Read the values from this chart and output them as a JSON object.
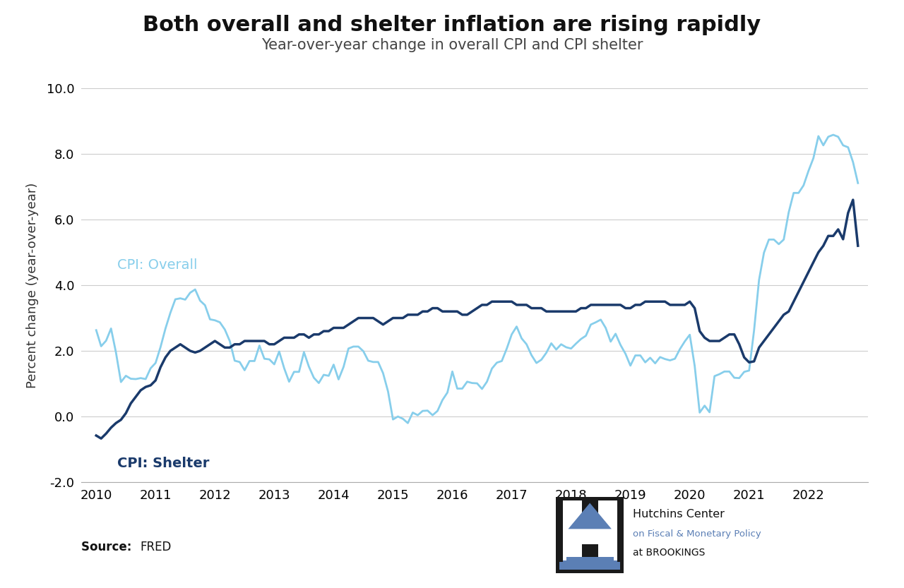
{
  "title": "Both overall and shelter inflation are rising rapidly",
  "subtitle": "Year-over-year change in overall CPI and CPI shelter",
  "ylabel": "Percent change (year-over-year)",
  "source": "FRED",
  "ylim": [
    -2.0,
    10.0
  ],
  "yticks": [
    -2.0,
    0.0,
    2.0,
    4.0,
    6.0,
    8.0,
    10.0
  ],
  "xticks": [
    2010,
    2011,
    2012,
    2013,
    2014,
    2015,
    2016,
    2017,
    2018,
    2019,
    2020,
    2021,
    2022
  ],
  "color_overall": "#87CEEB",
  "color_shelter": "#1a3a6b",
  "label_overall": "CPI: Overall",
  "label_shelter": "CPI: Shelter",
  "overall_x": [
    2010.0,
    2010.083,
    2010.167,
    2010.25,
    2010.333,
    2010.417,
    2010.5,
    2010.583,
    2010.667,
    2010.75,
    2010.833,
    2010.917,
    2011.0,
    2011.083,
    2011.167,
    2011.25,
    2011.333,
    2011.417,
    2011.5,
    2011.583,
    2011.667,
    2011.75,
    2011.833,
    2011.917,
    2012.0,
    2012.083,
    2012.167,
    2012.25,
    2012.333,
    2012.417,
    2012.5,
    2012.583,
    2012.667,
    2012.75,
    2012.833,
    2012.917,
    2013.0,
    2013.083,
    2013.167,
    2013.25,
    2013.333,
    2013.417,
    2013.5,
    2013.583,
    2013.667,
    2013.75,
    2013.833,
    2013.917,
    2014.0,
    2014.083,
    2014.167,
    2014.25,
    2014.333,
    2014.417,
    2014.5,
    2014.583,
    2014.667,
    2014.75,
    2014.833,
    2014.917,
    2015.0,
    2015.083,
    2015.167,
    2015.25,
    2015.333,
    2015.417,
    2015.5,
    2015.583,
    2015.667,
    2015.75,
    2015.833,
    2015.917,
    2016.0,
    2016.083,
    2016.167,
    2016.25,
    2016.333,
    2016.417,
    2016.5,
    2016.583,
    2016.667,
    2016.75,
    2016.833,
    2016.917,
    2017.0,
    2017.083,
    2017.167,
    2017.25,
    2017.333,
    2017.417,
    2017.5,
    2017.583,
    2017.667,
    2017.75,
    2017.833,
    2017.917,
    2018.0,
    2018.083,
    2018.167,
    2018.25,
    2018.333,
    2018.417,
    2018.5,
    2018.583,
    2018.667,
    2018.75,
    2018.833,
    2018.917,
    2019.0,
    2019.083,
    2019.167,
    2019.25,
    2019.333,
    2019.417,
    2019.5,
    2019.583,
    2019.667,
    2019.75,
    2019.833,
    2019.917,
    2020.0,
    2020.083,
    2020.167,
    2020.25,
    2020.333,
    2020.417,
    2020.5,
    2020.583,
    2020.667,
    2020.75,
    2020.833,
    2020.917,
    2021.0,
    2021.083,
    2021.167,
    2021.25,
    2021.333,
    2021.417,
    2021.5,
    2021.583,
    2021.667,
    2021.75,
    2021.833,
    2021.917,
    2022.0,
    2022.083,
    2022.167,
    2022.25,
    2022.333,
    2022.417,
    2022.5,
    2022.583,
    2022.667,
    2022.75,
    2022.833
  ],
  "overall_y": [
    2.63,
    2.14,
    2.31,
    2.68,
    1.95,
    1.05,
    1.24,
    1.15,
    1.14,
    1.17,
    1.14,
    1.47,
    1.63,
    2.11,
    2.68,
    3.16,
    3.57,
    3.6,
    3.56,
    3.77,
    3.87,
    3.53,
    3.39,
    2.96,
    2.93,
    2.87,
    2.65,
    2.3,
    1.7,
    1.66,
    1.41,
    1.69,
    1.69,
    2.16,
    1.76,
    1.74,
    1.59,
    1.98,
    1.47,
    1.06,
    1.36,
    1.36,
    1.96,
    1.52,
    1.18,
    1.02,
    1.27,
    1.24,
    1.58,
    1.13,
    1.51,
    2.07,
    2.13,
    2.13,
    1.99,
    1.7,
    1.66,
    1.66,
    1.32,
    0.76,
    -0.09,
    0.0,
    -0.07,
    -0.2,
    0.12,
    0.04,
    0.17,
    0.18,
    0.04,
    0.17,
    0.5,
    0.73,
    1.37,
    0.85,
    0.85,
    1.06,
    1.02,
    1.01,
    0.84,
    1.06,
    1.46,
    1.64,
    1.69,
    2.07,
    2.5,
    2.74,
    2.38,
    2.2,
    1.87,
    1.63,
    1.73,
    1.94,
    2.23,
    2.04,
    2.2,
    2.11,
    2.07,
    2.22,
    2.36,
    2.46,
    2.8,
    2.87,
    2.95,
    2.7,
    2.28,
    2.52,
    2.18,
    1.91,
    1.55,
    1.86,
    1.86,
    1.65,
    1.79,
    1.62,
    1.81,
    1.75,
    1.71,
    1.76,
    2.05,
    2.29,
    2.49,
    1.54,
    0.12,
    0.33,
    0.13,
    1.23,
    1.29,
    1.37,
    1.37,
    1.18,
    1.17,
    1.36,
    1.4,
    2.62,
    4.16,
    4.99,
    5.39,
    5.39,
    5.25,
    5.39,
    6.22,
    6.81,
    6.81,
    7.04,
    7.48,
    7.87,
    8.54,
    8.26,
    8.52,
    8.58,
    8.52,
    8.26,
    8.2,
    7.75,
    7.11
  ],
  "shelter_x": [
    2010.0,
    2010.083,
    2010.167,
    2010.25,
    2010.333,
    2010.417,
    2010.5,
    2010.583,
    2010.667,
    2010.75,
    2010.833,
    2010.917,
    2011.0,
    2011.083,
    2011.167,
    2011.25,
    2011.333,
    2011.417,
    2011.5,
    2011.583,
    2011.667,
    2011.75,
    2011.833,
    2011.917,
    2012.0,
    2012.083,
    2012.167,
    2012.25,
    2012.333,
    2012.417,
    2012.5,
    2012.583,
    2012.667,
    2012.75,
    2012.833,
    2012.917,
    2013.0,
    2013.083,
    2013.167,
    2013.25,
    2013.333,
    2013.417,
    2013.5,
    2013.583,
    2013.667,
    2013.75,
    2013.833,
    2013.917,
    2014.0,
    2014.083,
    2014.167,
    2014.25,
    2014.333,
    2014.417,
    2014.5,
    2014.583,
    2014.667,
    2014.75,
    2014.833,
    2014.917,
    2015.0,
    2015.083,
    2015.167,
    2015.25,
    2015.333,
    2015.417,
    2015.5,
    2015.583,
    2015.667,
    2015.75,
    2015.833,
    2015.917,
    2016.0,
    2016.083,
    2016.167,
    2016.25,
    2016.333,
    2016.417,
    2016.5,
    2016.583,
    2016.667,
    2016.75,
    2016.833,
    2016.917,
    2017.0,
    2017.083,
    2017.167,
    2017.25,
    2017.333,
    2017.417,
    2017.5,
    2017.583,
    2017.667,
    2017.75,
    2017.833,
    2017.917,
    2018.0,
    2018.083,
    2018.167,
    2018.25,
    2018.333,
    2018.417,
    2018.5,
    2018.583,
    2018.667,
    2018.75,
    2018.833,
    2018.917,
    2019.0,
    2019.083,
    2019.167,
    2019.25,
    2019.333,
    2019.417,
    2019.5,
    2019.583,
    2019.667,
    2019.75,
    2019.833,
    2019.917,
    2020.0,
    2020.083,
    2020.167,
    2020.25,
    2020.333,
    2020.417,
    2020.5,
    2020.583,
    2020.667,
    2020.75,
    2020.833,
    2020.917,
    2021.0,
    2021.083,
    2021.167,
    2021.25,
    2021.333,
    2021.417,
    2021.5,
    2021.583,
    2021.667,
    2021.75,
    2021.833,
    2021.917,
    2022.0,
    2022.083,
    2022.167,
    2022.25,
    2022.333,
    2022.417,
    2022.5,
    2022.583,
    2022.667,
    2022.75,
    2022.833
  ],
  "shelter_y": [
    -0.58,
    -0.67,
    -0.52,
    -0.34,
    -0.2,
    -0.1,
    0.1,
    0.4,
    0.6,
    0.8,
    0.9,
    0.95,
    1.1,
    1.5,
    1.8,
    2.0,
    2.1,
    2.2,
    2.1,
    2.0,
    1.95,
    2.0,
    2.1,
    2.2,
    2.3,
    2.2,
    2.1,
    2.1,
    2.2,
    2.2,
    2.3,
    2.3,
    2.3,
    2.3,
    2.3,
    2.2,
    2.2,
    2.3,
    2.4,
    2.4,
    2.4,
    2.5,
    2.5,
    2.4,
    2.5,
    2.5,
    2.6,
    2.6,
    2.7,
    2.7,
    2.7,
    2.8,
    2.9,
    3.0,
    3.0,
    3.0,
    3.0,
    2.9,
    2.8,
    2.9,
    3.0,
    3.0,
    3.0,
    3.1,
    3.1,
    3.1,
    3.2,
    3.2,
    3.3,
    3.3,
    3.2,
    3.2,
    3.2,
    3.2,
    3.1,
    3.1,
    3.2,
    3.3,
    3.4,
    3.4,
    3.5,
    3.5,
    3.5,
    3.5,
    3.5,
    3.4,
    3.4,
    3.4,
    3.3,
    3.3,
    3.3,
    3.2,
    3.2,
    3.2,
    3.2,
    3.2,
    3.2,
    3.2,
    3.3,
    3.3,
    3.4,
    3.4,
    3.4,
    3.4,
    3.4,
    3.4,
    3.4,
    3.3,
    3.3,
    3.4,
    3.4,
    3.5,
    3.5,
    3.5,
    3.5,
    3.5,
    3.4,
    3.4,
    3.4,
    3.4,
    3.5,
    3.3,
    2.6,
    2.4,
    2.3,
    2.3,
    2.3,
    2.4,
    2.5,
    2.5,
    2.2,
    1.8,
    1.65,
    1.68,
    2.1,
    2.3,
    2.5,
    2.7,
    2.9,
    3.1,
    3.2,
    3.5,
    3.8,
    4.1,
    4.4,
    4.7,
    5.0,
    5.2,
    5.5,
    5.5,
    5.7,
    5.4,
    6.2,
    6.6,
    5.2
  ],
  "hutchins_logo_text1": "Hutchins Center",
  "hutchins_logo_text2": "on Fiscal & Monetary Policy",
  "hutchins_logo_text3": "at BROOKINGS",
  "background_color": "#ffffff",
  "grid_color": "#cccccc",
  "title_fontsize": 22,
  "subtitle_fontsize": 15,
  "axis_label_fontsize": 13,
  "tick_fontsize": 13,
  "annotation_fontsize": 14,
  "logo_color_dark": "#1a1a1a",
  "logo_color_blue": "#5b7fb5",
  "logo_text_blue": "#5b7fb5"
}
